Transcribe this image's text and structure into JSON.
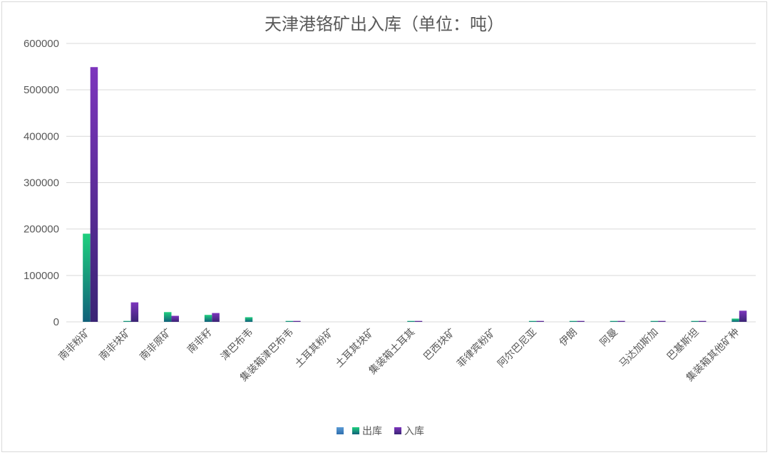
{
  "chart_data": {
    "type": "bar",
    "title": "天津港铬矿出入库（单位：吨）",
    "xlabel": "",
    "ylabel": "",
    "ylim": [
      0,
      600000
    ],
    "yticks": [
      "0",
      "100000",
      "200000",
      "300000",
      "400000",
      "500000",
      "600000"
    ],
    "grid": true,
    "legend_position": "bottom",
    "categories": [
      "南非粉矿",
      "南非块矿",
      "南非原矿",
      "南非籽",
      "津巴布韦",
      "集装箱津巴布韦",
      "土耳其粉矿",
      "土耳其块矿",
      "集装箱土耳其",
      "巴西块矿",
      "菲律宾粉矿",
      "阿尔巴尼亚",
      "伊朗",
      "阿曼",
      "马达加斯加",
      "巴基斯坦",
      "集装箱其他矿种"
    ],
    "series": [
      {
        "name": "",
        "color": "#5b9bd5",
        "values": [
          0,
          0,
          0,
          0,
          0,
          0,
          0,
          0,
          0,
          0,
          0,
          0,
          0,
          0,
          0,
          0,
          0
        ]
      },
      {
        "name": "出库",
        "color": "#1fc77a",
        "values": [
          190000,
          2000,
          21000,
          15000,
          10000,
          2000,
          0,
          0,
          2000,
          0,
          0,
          2000,
          2000,
          2000,
          2000,
          2000,
          7000
        ]
      },
      {
        "name": "入库",
        "color": "#7030a0",
        "values": [
          549000,
          42000,
          13000,
          19000,
          0,
          2000,
          0,
          0,
          2000,
          0,
          0,
          2000,
          2000,
          2000,
          2000,
          2000,
          24000
        ]
      }
    ]
  }
}
